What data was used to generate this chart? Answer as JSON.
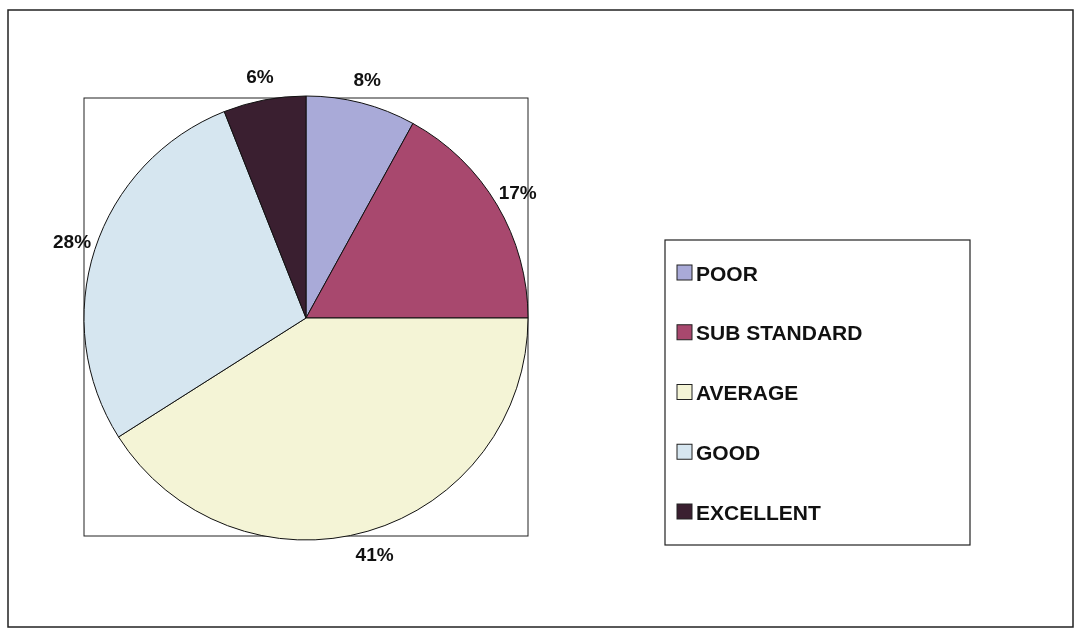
{
  "chart_data": {
    "type": "pie",
    "categories": [
      "POOR",
      "SUB STANDARD",
      "AVERAGE",
      "GOOD",
      "EXCELLENT"
    ],
    "values": [
      8,
      17,
      41,
      28,
      6
    ],
    "colors": [
      "#a9aad8",
      "#a8486e",
      "#f4f4d6",
      "#d6e6f0",
      "#3a1f30"
    ],
    "value_labels": [
      "8%",
      "17%",
      "41%",
      "28%",
      "6%"
    ],
    "legend": "right"
  }
}
